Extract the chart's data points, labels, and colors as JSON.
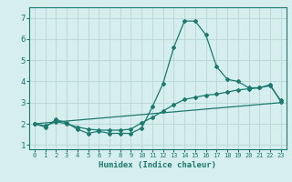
{
  "xlabel": "Humidex (Indice chaleur)",
  "ylabel": "",
  "background_color": "#d6eeee",
  "grid_color": "#b8d4d4",
  "line_color": "#1a7a6e",
  "spine_color": "#1a7a6e",
  "xlim": [
    -0.5,
    23.5
  ],
  "ylim": [
    0.8,
    7.5
  ],
  "xticks": [
    0,
    1,
    2,
    3,
    4,
    5,
    6,
    7,
    8,
    9,
    10,
    11,
    12,
    13,
    14,
    15,
    16,
    17,
    18,
    19,
    20,
    21,
    22,
    23
  ],
  "yticks": [
    1,
    2,
    3,
    4,
    5,
    6,
    7
  ],
  "line1_x": [
    0,
    1,
    2,
    3,
    4,
    5,
    6,
    7,
    8,
    9,
    10,
    11,
    12,
    13,
    14,
    15,
    16,
    17,
    18,
    19,
    20,
    21,
    22,
    23
  ],
  "line1_y": [
    2.0,
    1.85,
    2.2,
    2.05,
    1.75,
    1.55,
    1.65,
    1.55,
    1.55,
    1.55,
    1.8,
    2.8,
    3.9,
    5.6,
    6.85,
    6.85,
    6.2,
    4.7,
    4.1,
    4.0,
    3.7,
    3.7,
    3.85,
    3.05
  ],
  "line2_x": [
    0,
    1,
    2,
    3,
    4,
    5,
    6,
    7,
    8,
    9,
    10,
    11,
    12,
    13,
    14,
    15,
    16,
    17,
    18,
    19,
    20,
    21,
    22,
    23
  ],
  "line2_y": [
    2.0,
    1.9,
    2.1,
    2.0,
    1.85,
    1.75,
    1.7,
    1.7,
    1.7,
    1.75,
    2.05,
    2.3,
    2.6,
    2.9,
    3.15,
    3.25,
    3.35,
    3.4,
    3.5,
    3.6,
    3.65,
    3.7,
    3.8,
    3.1
  ],
  "line3_x": [
    0,
    23
  ],
  "line3_y": [
    2.0,
    3.0
  ]
}
